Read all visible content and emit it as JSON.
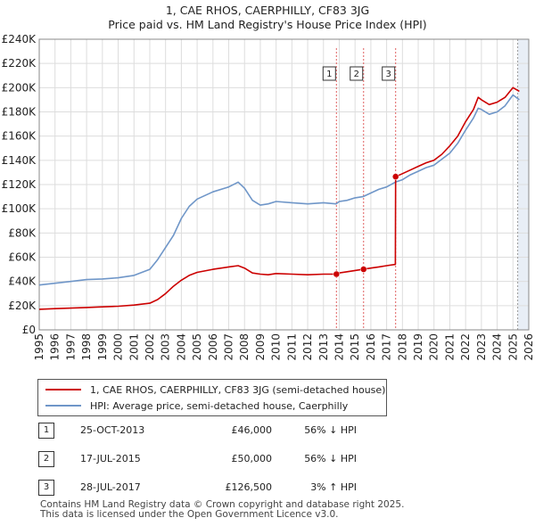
{
  "title": "1, CAE RHOS, CAERPHILLY, CF83 3JG",
  "subtitle": "Price paid vs. HM Land Registry's House Price Index (HPI)",
  "colors": {
    "property": "#cc0000",
    "hpi": "#6f96c8",
    "sale_line": "#e06060",
    "future_shade": "#e8eef6",
    "grid": "#dddddd"
  },
  "chart_data": {
    "type": "line",
    "xlim": [
      1995,
      2026
    ],
    "ylim": [
      0,
      240000
    ],
    "y_ticks": [
      0,
      20000,
      40000,
      60000,
      80000,
      100000,
      120000,
      140000,
      160000,
      180000,
      200000,
      220000,
      240000
    ],
    "y_tick_labels": [
      "£0",
      "£20K",
      "£40K",
      "£60K",
      "£80K",
      "£100K",
      "£120K",
      "£140K",
      "£160K",
      "£180K",
      "£200K",
      "£220K",
      "£240K"
    ],
    "x_ticks": [
      1995,
      1996,
      1997,
      1998,
      1999,
      2000,
      2001,
      2002,
      2003,
      2004,
      2005,
      2006,
      2007,
      2008,
      2009,
      2010,
      2011,
      2012,
      2013,
      2014,
      2015,
      2016,
      2017,
      2018,
      2019,
      2020,
      2021,
      2022,
      2023,
      2024,
      2025,
      2026
    ],
    "future_start": 2025.3,
    "series": [
      {
        "name": "1, CAE RHOS, CAERPHILLY, CF83 3JG (semi-detached house)",
        "color": "#cc0000",
        "x": [
          1995,
          1996,
          1997,
          1998,
          1999,
          2000,
          2001,
          2002,
          2002.5,
          2003,
          2003.5,
          2004,
          2004.5,
          2005,
          2006,
          2007,
          2007.6,
          2008,
          2008.5,
          2009,
          2009.5,
          2010,
          2011,
          2012,
          2013,
          2013.8,
          2014,
          2014.5,
          2015,
          2015.5,
          2016,
          2016.5,
          2017,
          2017.55,
          2017.57,
          2018,
          2018.5,
          2019,
          2019.5,
          2020,
          2020.5,
          2021,
          2021.5,
          2022,
          2022.5,
          2022.8,
          2023,
          2023.5,
          2024,
          2024.5,
          2025,
          2025.4
        ],
        "values": [
          17000,
          17500,
          18000,
          18500,
          19000,
          19500,
          20500,
          22000,
          25000,
          30000,
          36000,
          41000,
          45000,
          47500,
          50000,
          52000,
          53000,
          51000,
          47000,
          46000,
          45500,
          46500,
          46000,
          45500,
          46000,
          46000,
          47000,
          48000,
          49000,
          50000,
          51000,
          52000,
          53000,
          54000,
          126500,
          129000,
          132000,
          135000,
          138000,
          140000,
          145000,
          152000,
          160000,
          172000,
          182000,
          192000,
          190000,
          186000,
          188000,
          192000,
          200000,
          197000
        ]
      },
      {
        "name": "HPI: Average price, semi-detached house, Caerphilly",
        "color": "#6f96c8",
        "x": [
          1995,
          1996,
          1997,
          1998,
          1999,
          2000,
          2001,
          2002,
          2002.5,
          2003,
          2003.5,
          2004,
          2004.5,
          2005,
          2006,
          2007,
          2007.6,
          2008,
          2008.5,
          2009,
          2009.5,
          2010,
          2011,
          2012,
          2013,
          2013.8,
          2014,
          2014.5,
          2015,
          2015.5,
          2016,
          2016.5,
          2017,
          2017.55,
          2018,
          2018.5,
          2019,
          2019.5,
          2020,
          2020.5,
          2021,
          2021.5,
          2022,
          2022.5,
          2022.8,
          2023,
          2023.5,
          2024,
          2024.5,
          2025,
          2025.4
        ],
        "values": [
          37000,
          38500,
          40000,
          41500,
          42000,
          43000,
          45000,
          50000,
          58000,
          68000,
          78000,
          92000,
          102000,
          108000,
          114000,
          118000,
          122000,
          117000,
          107000,
          103000,
          104000,
          106000,
          105000,
          104000,
          105000,
          104000,
          106000,
          107000,
          109000,
          110000,
          113000,
          116000,
          118000,
          122000,
          124000,
          128000,
          131000,
          134000,
          136000,
          141000,
          146000,
          154000,
          165000,
          175000,
          183000,
          182000,
          178000,
          180000,
          185000,
          194000,
          190000
        ]
      }
    ],
    "sale_markers": [
      {
        "label": "1",
        "x": 2013.82,
        "y": 46000
      },
      {
        "label": "2",
        "x": 2015.54,
        "y": 50000
      },
      {
        "label": "3",
        "x": 2017.57,
        "y": 126500
      }
    ]
  },
  "legend": {
    "property_label": "1, CAE RHOS, CAERPHILLY, CF83 3JG (semi-detached house)",
    "hpi_label": "HPI: Average price, semi-detached house, Caerphilly"
  },
  "sales": [
    {
      "num": "1",
      "date": "25-OCT-2013",
      "price": "£46,000",
      "hpi": "56% ↓ HPI"
    },
    {
      "num": "2",
      "date": "17-JUL-2015",
      "price": "£50,000",
      "hpi": "56% ↓ HPI"
    },
    {
      "num": "3",
      "date": "28-JUL-2017",
      "price": "£126,500",
      "hpi": "3% ↑ HPI"
    }
  ],
  "footer": {
    "line1": "Contains HM Land Registry data © Crown copyright and database right 2025.",
    "line2": "This data is licensed under the Open Government Licence v3.0."
  }
}
